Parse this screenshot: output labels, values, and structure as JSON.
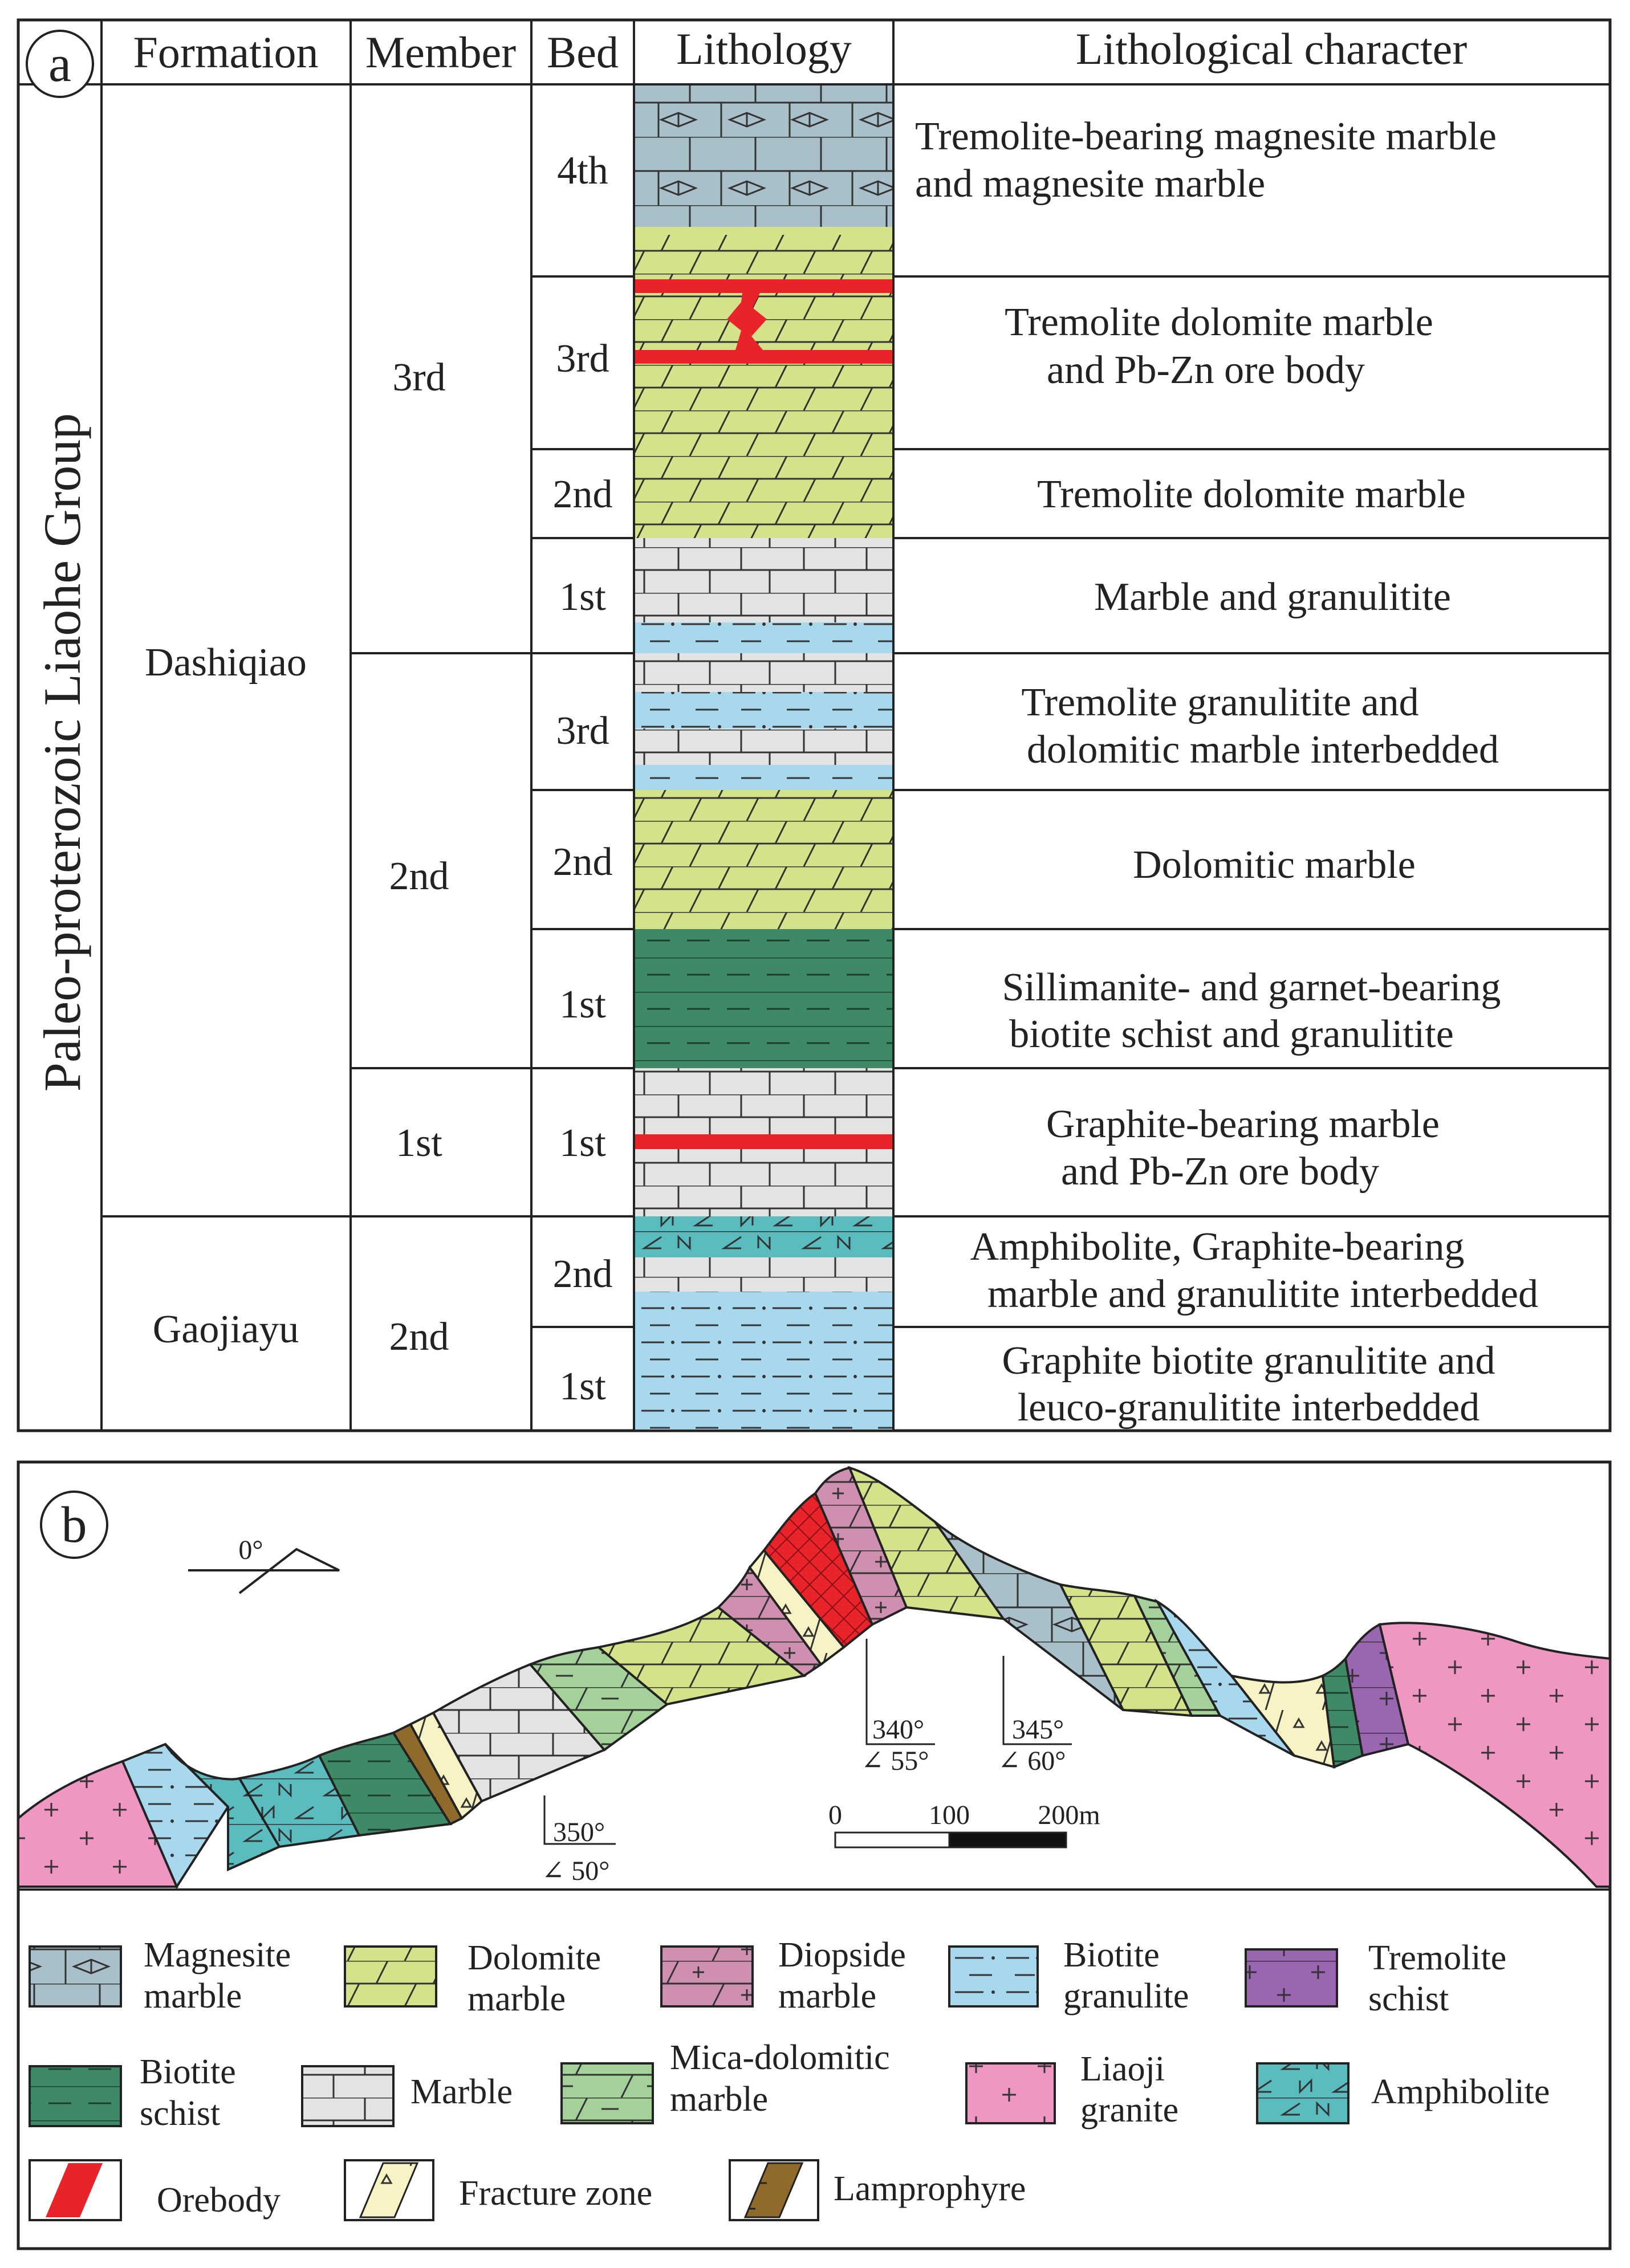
{
  "panel_a": {
    "label": "a",
    "headers": {
      "formation": "Formation",
      "member": "Member",
      "bed": "Bed",
      "lithology": "Lithology",
      "character": "Lithological character"
    },
    "group": "Paleo-proterozoic Liaohe Group",
    "formations": [
      "Dashiqiao",
      "Gaojiayu"
    ],
    "members": [
      "3rd",
      "2nd",
      "1st",
      "2nd"
    ],
    "beds": [
      "4th",
      "3rd",
      "2nd",
      "1st",
      "3rd",
      "2nd",
      "1st",
      "1st",
      "2nd",
      "1st"
    ],
    "descriptions": [
      [
        "Tremolite-bearing magnesite marble",
        "and magnesite marble"
      ],
      [
        "Tremolite dolomite marble",
        "and Pb-Zn ore body"
      ],
      [
        "Tremolite dolomite marble"
      ],
      [
        "Marble and granulitite"
      ],
      [
        "Tremolite granulitite and",
        "dolomitic marble interbedded"
      ],
      [
        "Dolomitic marble"
      ],
      [
        "Sillimanite- and garnet-bearing",
        "biotite schist and granulitite"
      ],
      [
        "Graphite-bearing marble",
        "and Pb-Zn ore body"
      ],
      [
        "Amphibolite, Graphite-bearing",
        "marble and granulitite interbedded"
      ],
      [
        "Graphite biotite granulitite and",
        "leuco-granulitite interbedded"
      ]
    ]
  },
  "panel_b": {
    "label": "b",
    "orientation": "0°",
    "attitudes": [
      {
        "strike": "350°",
        "dip": "∠ 50°"
      },
      {
        "strike": "340°",
        "dip": "∠ 55°"
      },
      {
        "strike": "345°",
        "dip": "∠ 60°"
      }
    ],
    "scale": [
      "0",
      "100",
      "200m"
    ]
  },
  "legend": [
    {
      "lines": [
        "Magnesite",
        "marble"
      ],
      "pattern": "magnesite"
    },
    {
      "lines": [
        "Dolomite",
        "marble"
      ],
      "pattern": "dolomite"
    },
    {
      "lines": [
        "Diopside",
        "marble"
      ],
      "pattern": "diopside"
    },
    {
      "lines": [
        "Biotite",
        "granulite"
      ],
      "pattern": "granulite"
    },
    {
      "lines": [
        "Tremolite",
        "schist"
      ],
      "pattern": "tremolite"
    },
    {
      "lines": [
        "Biotite",
        "schist"
      ],
      "pattern": "schist"
    },
    {
      "lines": [
        "Marble"
      ],
      "pattern": "marble"
    },
    {
      "lines": [
        "Mica-dolomitic",
        "marble"
      ],
      "pattern": "micadol"
    },
    {
      "lines": [
        "Liaoji",
        "granite"
      ],
      "pattern": "granite"
    },
    {
      "lines": [
        "Amphibolite"
      ],
      "pattern": "amphibolite"
    },
    {
      "lines": [
        "Orebody"
      ],
      "pattern": "orebody"
    },
    {
      "lines": [
        "Fracture zone"
      ],
      "pattern": "fracture"
    },
    {
      "lines": [
        "Lamprophyre"
      ],
      "pattern": "lamprophyre"
    }
  ],
  "colors": {
    "magnesite": "#a9bfc9",
    "dolomite": "#d4e38a",
    "diopside": "#cf8fb1",
    "granulite": "#a8d8ee",
    "tremolite": "#9a66b0",
    "schist": "#3f8a66",
    "marble": "#e3e3e3",
    "micadol": "#a4d19a",
    "granite": "#ef96c2",
    "amphibolite": "#5bbcc0",
    "orebody": "#e8242a",
    "fracture": "#f7f3c4",
    "lamprophyre": "#8f6a2a"
  }
}
